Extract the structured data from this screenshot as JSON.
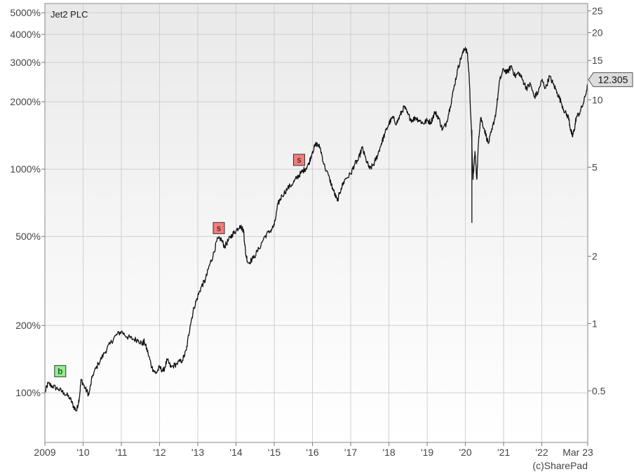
{
  "chart_data": {
    "type": "line",
    "title": "Jet2 PLC",
    "credit": "(c)SharePad",
    "y_scale": "log",
    "grid": true,
    "xlim": [
      2009.0,
      2023.2
    ],
    "ylim_left_percent": [
      60,
      5500
    ],
    "ylim_right_price": [
      0.2941,
      26.96
    ],
    "x_ticks": [
      {
        "value": 2009.0,
        "label": "2009"
      },
      {
        "value": 2010.0,
        "label": "'10"
      },
      {
        "value": 2011.0,
        "label": "'11"
      },
      {
        "value": 2012.0,
        "label": "'12"
      },
      {
        "value": 2013.0,
        "label": "'13"
      },
      {
        "value": 2014.0,
        "label": "'14"
      },
      {
        "value": 2015.0,
        "label": "'15"
      },
      {
        "value": 2016.0,
        "label": "'16"
      },
      {
        "value": 2017.0,
        "label": "'17"
      },
      {
        "value": 2018.0,
        "label": "'18"
      },
      {
        "value": 2019.0,
        "label": "'19"
      },
      {
        "value": 2020.0,
        "label": "'20"
      },
      {
        "value": 2021.0,
        "label": "'21"
      },
      {
        "value": 2022.0,
        "label": "'22"
      },
      {
        "value": 2023.2,
        "label": "Mar 23"
      }
    ],
    "y_left_ticks": [
      {
        "value": 100,
        "label": "100%"
      },
      {
        "value": 200,
        "label": "200%"
      },
      {
        "value": 500,
        "label": "500%"
      },
      {
        "value": 1000,
        "label": "1000%"
      },
      {
        "value": 2000,
        "label": "2000%"
      },
      {
        "value": 3000,
        "label": "3000%"
      },
      {
        "value": 4000,
        "label": "4000%"
      },
      {
        "value": 5000,
        "label": "5000%"
      }
    ],
    "y_right_ticks": [
      {
        "value": 0.5,
        "label": "0.5"
      },
      {
        "value": 1,
        "label": "1"
      },
      {
        "value": 2,
        "label": "2"
      },
      {
        "value": 5,
        "label": "5"
      },
      {
        "value": 10,
        "label": "10"
      },
      {
        "value": 15,
        "label": "15"
      },
      {
        "value": 20,
        "label": "20"
      },
      {
        "value": 25,
        "label": "25"
      }
    ],
    "last_price": {
      "value": 12.305,
      "label": "12.305"
    },
    "markers": [
      {
        "label": "b",
        "x": 2009.4,
        "y": 125,
        "color": "#8ff08f"
      },
      {
        "label": "s",
        "x": 2013.55,
        "y": 545,
        "color": "#f47c7c"
      },
      {
        "label": "s",
        "x": 2015.65,
        "y": 1100,
        "color": "#f47c7c"
      }
    ],
    "series": [
      {
        "color": "#111111",
        "points": [
          [
            2009.0,
            100
          ],
          [
            2009.08,
            110
          ],
          [
            2009.2,
            107
          ],
          [
            2009.35,
            104
          ],
          [
            2009.5,
            100
          ],
          [
            2009.65,
            95
          ],
          [
            2009.75,
            87
          ],
          [
            2009.83,
            83
          ],
          [
            2009.9,
            95
          ],
          [
            2009.95,
            115
          ],
          [
            2010.05,
            105
          ],
          [
            2010.15,
            98
          ],
          [
            2010.25,
            120
          ],
          [
            2010.4,
            135
          ],
          [
            2010.55,
            150
          ],
          [
            2010.7,
            165
          ],
          [
            2010.85,
            180
          ],
          [
            2011.0,
            188
          ],
          [
            2011.15,
            178
          ],
          [
            2011.3,
            174
          ],
          [
            2011.45,
            172
          ],
          [
            2011.55,
            165
          ],
          [
            2011.6,
            170
          ],
          [
            2011.7,
            150
          ],
          [
            2011.8,
            130
          ],
          [
            2011.9,
            122
          ],
          [
            2012.0,
            130
          ],
          [
            2012.1,
            125
          ],
          [
            2012.2,
            140
          ],
          [
            2012.3,
            130
          ],
          [
            2012.45,
            135
          ],
          [
            2012.6,
            140
          ],
          [
            2012.7,
            155
          ],
          [
            2012.8,
            200
          ],
          [
            2012.9,
            240
          ],
          [
            2013.0,
            270
          ],
          [
            2013.1,
            300
          ],
          [
            2013.2,
            320
          ],
          [
            2013.3,
            370
          ],
          [
            2013.4,
            410
          ],
          [
            2013.5,
            480
          ],
          [
            2013.6,
            490
          ],
          [
            2013.7,
            450
          ],
          [
            2013.8,
            480
          ],
          [
            2013.9,
            510
          ],
          [
            2014.0,
            530
          ],
          [
            2014.1,
            560
          ],
          [
            2014.2,
            530
          ],
          [
            2014.25,
            420
          ],
          [
            2014.32,
            380
          ],
          [
            2014.45,
            400
          ],
          [
            2014.6,
            440
          ],
          [
            2014.75,
            500
          ],
          [
            2014.9,
            530
          ],
          [
            2015.0,
            560
          ],
          [
            2015.1,
            700
          ],
          [
            2015.2,
            760
          ],
          [
            2015.35,
            820
          ],
          [
            2015.5,
            870
          ],
          [
            2015.6,
            920
          ],
          [
            2015.7,
            960
          ],
          [
            2015.8,
            1000
          ],
          [
            2015.9,
            1050
          ],
          [
            2016.0,
            1200
          ],
          [
            2016.1,
            1300
          ],
          [
            2016.2,
            1250
          ],
          [
            2016.3,
            1050
          ],
          [
            2016.45,
            900
          ],
          [
            2016.55,
            800
          ],
          [
            2016.65,
            720
          ],
          [
            2016.75,
            820
          ],
          [
            2016.85,
            900
          ],
          [
            2017.0,
            950
          ],
          [
            2017.1,
            1050
          ],
          [
            2017.2,
            1100
          ],
          [
            2017.3,
            1250
          ],
          [
            2017.4,
            1100
          ],
          [
            2017.5,
            1000
          ],
          [
            2017.6,
            1050
          ],
          [
            2017.7,
            1150
          ],
          [
            2017.8,
            1300
          ],
          [
            2017.9,
            1450
          ],
          [
            2018.0,
            1600
          ],
          [
            2018.1,
            1700
          ],
          [
            2018.2,
            1600
          ],
          [
            2018.3,
            1750
          ],
          [
            2018.4,
            1900
          ],
          [
            2018.5,
            1750
          ],
          [
            2018.6,
            1650
          ],
          [
            2018.7,
            1700
          ],
          [
            2018.8,
            1650
          ],
          [
            2018.9,
            1600
          ],
          [
            2019.0,
            1650
          ],
          [
            2019.1,
            1620
          ],
          [
            2019.2,
            1800
          ],
          [
            2019.3,
            1700
          ],
          [
            2019.4,
            1500
          ],
          [
            2019.5,
            1600
          ],
          [
            2019.6,
            1900
          ],
          [
            2019.7,
            2300
          ],
          [
            2019.8,
            2800
          ],
          [
            2019.9,
            3200
          ],
          [
            2020.0,
            3500
          ],
          [
            2020.05,
            3300
          ],
          [
            2020.1,
            2600
          ],
          [
            2020.15,
            1600
          ],
          [
            2020.2,
            900
          ],
          [
            2020.25,
            1200
          ],
          [
            2020.3,
            900
          ],
          [
            2020.35,
            1400
          ],
          [
            2020.4,
            1700
          ],
          [
            2020.5,
            1500
          ],
          [
            2020.6,
            1300
          ],
          [
            2020.7,
            1500
          ],
          [
            2020.8,
            1800
          ],
          [
            2020.9,
            2500
          ],
          [
            2021.0,
            2800
          ],
          [
            2021.1,
            2700
          ],
          [
            2021.2,
            2900
          ],
          [
            2021.3,
            2600
          ],
          [
            2021.4,
            2700
          ],
          [
            2021.5,
            2500
          ],
          [
            2021.6,
            2300
          ],
          [
            2021.7,
            2400
          ],
          [
            2021.8,
            2100
          ],
          [
            2021.9,
            2200
          ],
          [
            2022.0,
            2500
          ],
          [
            2022.1,
            2300
          ],
          [
            2022.2,
            2600
          ],
          [
            2022.3,
            2400
          ],
          [
            2022.4,
            2200
          ],
          [
            2022.5,
            2000
          ],
          [
            2022.6,
            1800
          ],
          [
            2022.7,
            1700
          ],
          [
            2022.75,
            1500
          ],
          [
            2022.8,
            1400
          ],
          [
            2022.85,
            1500
          ],
          [
            2022.9,
            1700
          ],
          [
            2023.0,
            1800
          ],
          [
            2023.1,
            2000
          ],
          [
            2023.2,
            2380
          ]
        ]
      }
    ]
  }
}
